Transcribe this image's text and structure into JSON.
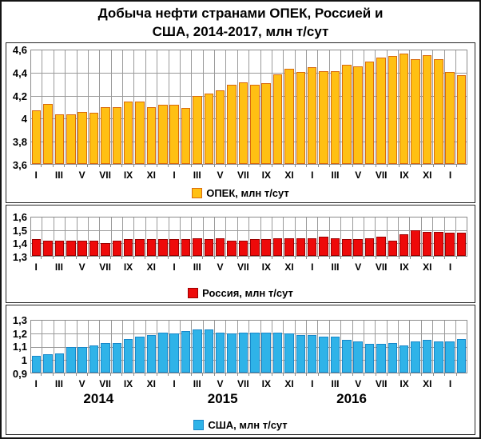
{
  "title": {
    "line1": "Добыча нефти странами ОПЕК, Россией и",
    "line2": "США, 2014-2017, млн т/сут"
  },
  "months_labels": [
    "I",
    "III",
    "V",
    "VII",
    "IX",
    "XI",
    "I",
    "III",
    "V",
    "VII",
    "IX",
    "XI",
    "I",
    "III",
    "V",
    "VII",
    "IX",
    "XI",
    "I"
  ],
  "colors": {
    "opec_fill": "#FFC013",
    "opec_border": "#D96A0D",
    "russia_fill": "#EE0A0A",
    "russia_border": "#9B0000",
    "usa_fill": "#2FB3E8",
    "usa_border": "#1887C9",
    "gridline": "#9A9A9A",
    "frame": "#141414"
  },
  "chart_data": [
    {
      "type": "bar",
      "series_name": "opec",
      "legend": "ОПЕК, млн т/сут",
      "ylim": [
        3.6,
        4.6
      ],
      "yticks": [
        {
          "label": "4,6",
          "value": 4.6
        },
        {
          "label": "4,4",
          "value": 4.4
        },
        {
          "label": "4,2",
          "value": 4.2
        },
        {
          "label": "4",
          "value": 4.0
        },
        {
          "label": "3,8",
          "value": 3.8
        },
        {
          "label": "3,6",
          "value": 3.6
        }
      ],
      "values": [
        4.07,
        4.13,
        4.04,
        4.04,
        4.06,
        4.05,
        4.1,
        4.1,
        4.15,
        4.15,
        4.1,
        4.12,
        4.12,
        4.09,
        4.2,
        4.22,
        4.25,
        4.3,
        4.32,
        4.3,
        4.31,
        4.39,
        4.44,
        4.41,
        4.45,
        4.42,
        4.42,
        4.47,
        4.46,
        4.5,
        4.54,
        4.55,
        4.57,
        4.52,
        4.56,
        4.52,
        4.41,
        4.38
      ],
      "bar_fill": "#FFC013",
      "bar_border": "#D96A0D",
      "grid": true,
      "legend_position": "bottom"
    },
    {
      "type": "bar",
      "series_name": "russia",
      "legend": "Россия, млн т/сут",
      "ylim": [
        1.3,
        1.6
      ],
      "yticks": [
        {
          "label": "1,6",
          "value": 1.6
        },
        {
          "label": "1,5",
          "value": 1.5
        },
        {
          "label": "1,4",
          "value": 1.4
        },
        {
          "label": "1,3",
          "value": 1.3
        }
      ],
      "values": [
        1.43,
        1.42,
        1.42,
        1.42,
        1.42,
        1.42,
        1.4,
        1.42,
        1.43,
        1.43,
        1.43,
        1.43,
        1.43,
        1.43,
        1.44,
        1.43,
        1.44,
        1.42,
        1.42,
        1.43,
        1.43,
        1.44,
        1.44,
        1.44,
        1.44,
        1.45,
        1.44,
        1.43,
        1.43,
        1.44,
        1.45,
        1.42,
        1.47,
        1.5,
        1.49,
        1.49,
        1.48,
        1.48
      ],
      "bar_fill": "#EE0A0A",
      "bar_border": "#9B0000",
      "grid": true,
      "legend_position": "bottom"
    },
    {
      "type": "bar",
      "series_name": "usa",
      "legend": "США, млн т/сут",
      "ylim": [
        0.9,
        1.3
      ],
      "yticks": [
        {
          "label": "1,3",
          "value": 1.3
        },
        {
          "label": "1,2",
          "value": 1.2
        },
        {
          "label": "1,1",
          "value": 1.1
        },
        {
          "label": "1",
          "value": 1.0
        },
        {
          "label": "0,9",
          "value": 0.9
        }
      ],
      "values": [
        1.03,
        1.04,
        1.05,
        1.1,
        1.1,
        1.11,
        1.13,
        1.13,
        1.16,
        1.18,
        1.19,
        1.21,
        1.2,
        1.22,
        1.23,
        1.23,
        1.21,
        1.2,
        1.21,
        1.21,
        1.21,
        1.21,
        1.2,
        1.19,
        1.19,
        1.18,
        1.18,
        1.15,
        1.14,
        1.12,
        1.12,
        1.13,
        1.11,
        1.14,
        1.15,
        1.14,
        1.14,
        1.16
      ],
      "bar_fill": "#2FB3E8",
      "bar_border": "#1887C9",
      "grid": true,
      "legend_position": "bottom",
      "years": [
        {
          "label": "2014",
          "pos": 15.6
        },
        {
          "label": "2015",
          "pos": 44.0
        },
        {
          "label": "2016",
          "pos": 73.5
        }
      ]
    }
  ]
}
